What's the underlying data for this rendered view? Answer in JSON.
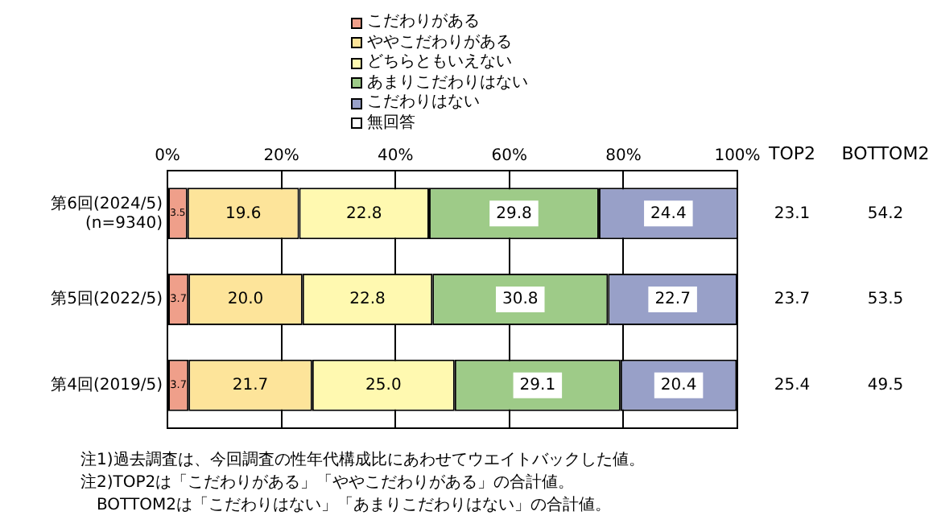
{
  "chart_data": {
    "type": "bar",
    "orientation": "horizontal",
    "stacked": true,
    "categories": [
      "第6回(2024/5)\n(n=9340)",
      "第5回(2022/5)",
      "第4回(2019/5)"
    ],
    "series": [
      {
        "name": "こだわりがある",
        "color": "#ef9f8a",
        "values": [
          3.5,
          3.7,
          3.7
        ],
        "value_labels": [
          "3.5",
          "3.7",
          "3.7"
        ]
      },
      {
        "name": "ややこだわりがある",
        "color": "#fde49a",
        "values": [
          19.6,
          20.0,
          21.7
        ],
        "value_labels": [
          "19.6",
          "20.0",
          "21.7"
        ]
      },
      {
        "name": "どちらともいえない",
        "color": "#fff9b0",
        "values": [
          22.8,
          22.8,
          25.0
        ],
        "value_labels": [
          "22.8",
          "22.8",
          "25.0"
        ]
      },
      {
        "name": "あまりこだわりはない",
        "color": "#9ecb88",
        "values": [
          29.8,
          30.8,
          29.1
        ],
        "value_labels": [
          "29.8",
          "30.8",
          "29.1"
        ]
      },
      {
        "name": "こだわりはない",
        "color": "#98a0c8",
        "values": [
          24.4,
          22.7,
          20.4
        ],
        "value_labels": [
          "24.4",
          "22.7",
          "20.4"
        ]
      },
      {
        "name": "無回答",
        "color": "#ffffff",
        "values": [
          0,
          0,
          0
        ]
      }
    ],
    "xlim": [
      0,
      100
    ],
    "xticks": [
      {
        "value": 0,
        "label": "0%"
      },
      {
        "value": 20,
        "label": "20%"
      },
      {
        "value": 40,
        "label": "40%"
      },
      {
        "value": 60,
        "label": "60%"
      },
      {
        "value": 80,
        "label": "80%"
      },
      {
        "value": 100,
        "label": "100%"
      }
    ],
    "grid": "x",
    "legend": "top",
    "annotations": [
      "TOP2",
      "BOTTOM2",
      "23.1",
      "54.2",
      "23.7",
      "53.5",
      "25.4",
      "49.5",
      "注1)過去調査は、今回調査の性年代構成比にあわせてウエイトバックした値。",
      "注2)TOP2は「こだわりがある」「ややこだわりがある」の合計値。",
      "　BOTTOM2は「こだわりはない」「あまりこだわりはない」の合計値。"
    ]
  }
}
